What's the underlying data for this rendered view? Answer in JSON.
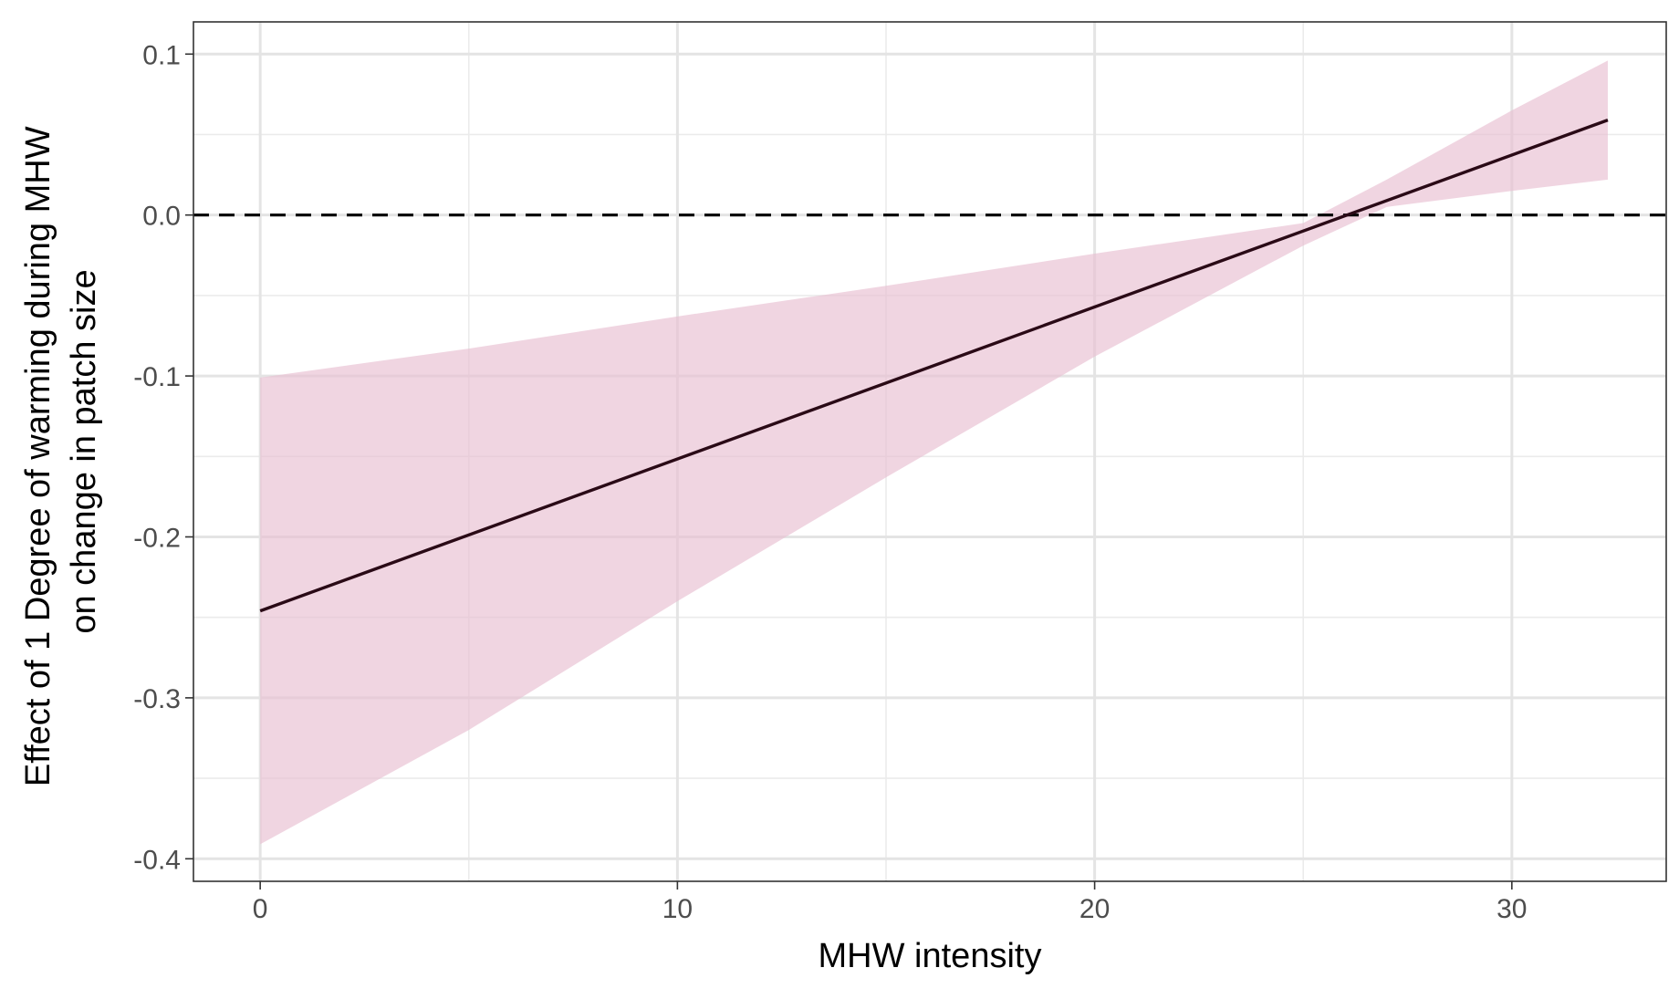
{
  "chart_data": {
    "type": "line",
    "title": "",
    "xlabel": "MHW intensity",
    "ylabel_lines": [
      "Effect of 1 Degree of warming during MHW",
      "on change in patch size"
    ],
    "xlim": [
      -1.6,
      33.7
    ],
    "ylim": [
      -0.414,
      0.12
    ],
    "x_ticks": [
      0,
      10,
      20,
      30
    ],
    "x_tick_labels": [
      "0",
      "10",
      "20",
      "30"
    ],
    "x_minor_ticks": [
      5,
      15,
      25
    ],
    "y_ticks": [
      -0.4,
      -0.3,
      -0.2,
      -0.1,
      0.0,
      0.1
    ],
    "y_tick_labels": [
      "-0.4",
      "-0.3",
      "-0.2",
      "-0.1",
      "0.0",
      "0.1"
    ],
    "y_minor_ticks": [
      -0.35,
      -0.25,
      -0.15,
      -0.05,
      0.05
    ],
    "grid": true,
    "reference_line": {
      "y": 0.0,
      "style": "dashed",
      "color": "#000000"
    },
    "series": [
      {
        "x": [
          0,
          32.3
        ],
        "y": [
          -0.246,
          0.059
        ],
        "color": "#2a0a16",
        "ribbon": {
          "x": [
            0,
            5,
            10,
            15,
            20,
            25,
            27,
            30,
            32.3
          ],
          "lower": [
            -0.391,
            -0.32,
            -0.24,
            -0.163,
            -0.088,
            -0.019,
            0.005,
            0.015,
            0.022
          ],
          "upper": [
            -0.101,
            -0.083,
            -0.063,
            -0.044,
            -0.024,
            -0.005,
            0.022,
            0.065,
            0.096
          ],
          "color": "#e8bfd1"
        }
      }
    ]
  }
}
